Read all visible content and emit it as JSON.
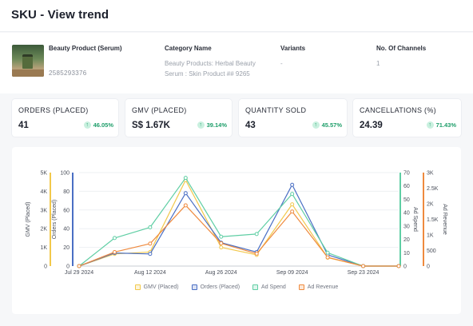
{
  "header": {
    "title": "SKU - View trend"
  },
  "product": {
    "name": "Beauty Product (Serum)",
    "id": "2585293376",
    "category_header": "Category Name",
    "category_value": "Beauty Products: Herbal Beauty Serum : Skin Product ## 9265",
    "variants_header": "Variants",
    "variants_value": "-",
    "channels_header": "No. Of Channels",
    "channels_value": "1"
  },
  "kpis": [
    {
      "label": "ORDERS (PLACED)",
      "value": "41",
      "change": "46.05%"
    },
    {
      "label": "GMV (PLACED)",
      "value": "S$ 1.67K",
      "change": "39.14%"
    },
    {
      "label": "QUANTITY SOLD",
      "value": "43",
      "change": "45.57%"
    },
    {
      "label": "CANCELLATIONS (%)",
      "value": "24.39",
      "change": "71.43%"
    }
  ],
  "colors": {
    "gmv": "#f2c84b",
    "orders": "#4a6fc4",
    "ad_spend": "#5fcea4",
    "ad_revenue": "#ef8a3e",
    "up": "#1e9e6a"
  },
  "chart_data": {
    "type": "line",
    "x": [
      "Jul 29 2024",
      "Aug 05 2024",
      "Aug 12 2024",
      "Aug 19 2024",
      "Aug 26 2024",
      "Sep 02 2024",
      "Sep 09 2024",
      "Sep 16 2024",
      "Sep 23 2024",
      "Sep 30 2024"
    ],
    "x_tick_labels": [
      "Jul 29 2024",
      "Aug 12 2024",
      "Aug 26 2024",
      "Sep 09 2024",
      "Sep 23 2024"
    ],
    "series": [
      {
        "name": "GMV (Placed)",
        "axis": "left_gmv",
        "values": [
          0,
          650,
          750,
          4600,
          1000,
          600,
          3300,
          450,
          0,
          0
        ]
      },
      {
        "name": "Orders (Placed)",
        "axis": "left_orders",
        "values": [
          0,
          14,
          13,
          78,
          25,
          15,
          87,
          12,
          0,
          0
        ]
      },
      {
        "name": "Ad Spend",
        "axis": "right_spend",
        "values": [
          0,
          21,
          29,
          66,
          22,
          24,
          54,
          10,
          0,
          0
        ]
      },
      {
        "name": "Ad Revenue",
        "axis": "right_revenue",
        "values": [
          0,
          450,
          720,
          1950,
          730,
          400,
          1750,
          280,
          0,
          0
        ]
      }
    ],
    "axes": {
      "left_gmv": {
        "label": "GMV (Placed)",
        "ticks": [
          "0",
          "1K",
          "2K",
          "3K",
          "4K",
          "5K"
        ],
        "range": [
          0,
          5000
        ]
      },
      "left_orders": {
        "label": "Orders (Placed)",
        "ticks": [
          "0",
          "20",
          "40",
          "60",
          "80",
          "100"
        ],
        "range": [
          0,
          100
        ]
      },
      "right_spend": {
        "label": "Ad Spend",
        "ticks": [
          "0",
          "10",
          "20",
          "30",
          "40",
          "50",
          "60",
          "70"
        ],
        "range": [
          0,
          70
        ]
      },
      "right_revenue": {
        "label": "Ad Revenue",
        "ticks": [
          "0",
          "500",
          "1K",
          "1.5K",
          "2K",
          "2.5K",
          "3K"
        ],
        "range": [
          0,
          3000
        ]
      }
    },
    "legend": [
      "GMV (Placed)",
      "Orders (Placed)",
      "Ad Spend",
      "Ad Revenue"
    ],
    "grid": true,
    "legend_position": "bottom"
  }
}
